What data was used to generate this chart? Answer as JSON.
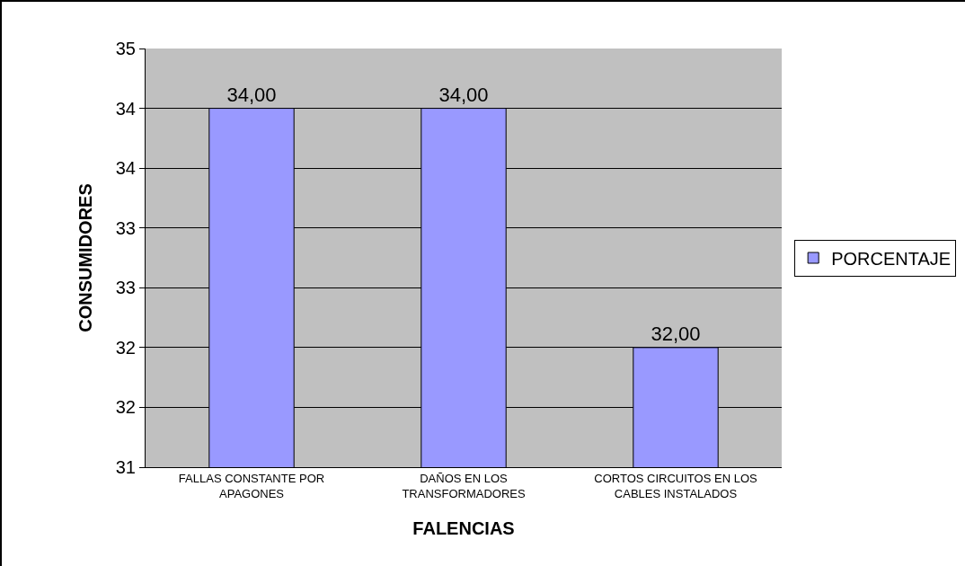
{
  "chart_data": {
    "type": "bar",
    "xlabel": "FALENCIAS",
    "ylabel": "CONSUMIDORES",
    "categories": [
      "FALLAS CONSTANTE POR APAGONES",
      "DAÑOS EN LOS TRANSFORMADORES",
      "CORTOS CIRCUITOS EN LOS CABLES INSTALADOS"
    ],
    "series": [
      {
        "name": "PORCENTAJE",
        "color": "#9999ff",
        "values": [
          34,
          34,
          32
        ],
        "value_labels": [
          "34,00",
          "34,00",
          "32,00"
        ]
      }
    ],
    "ylim": [
      31,
      34.5
    ],
    "yticks": [
      31,
      {
        "value": 31.5,
        "label": "32"
      },
      32,
      {
        "value": 32.5,
        "label": "33"
      },
      33,
      {
        "value": 33.5,
        "label": "34"
      },
      34,
      {
        "value": 34.5,
        "label": "35"
      }
    ],
    "grid": "y",
    "legend": "right"
  }
}
